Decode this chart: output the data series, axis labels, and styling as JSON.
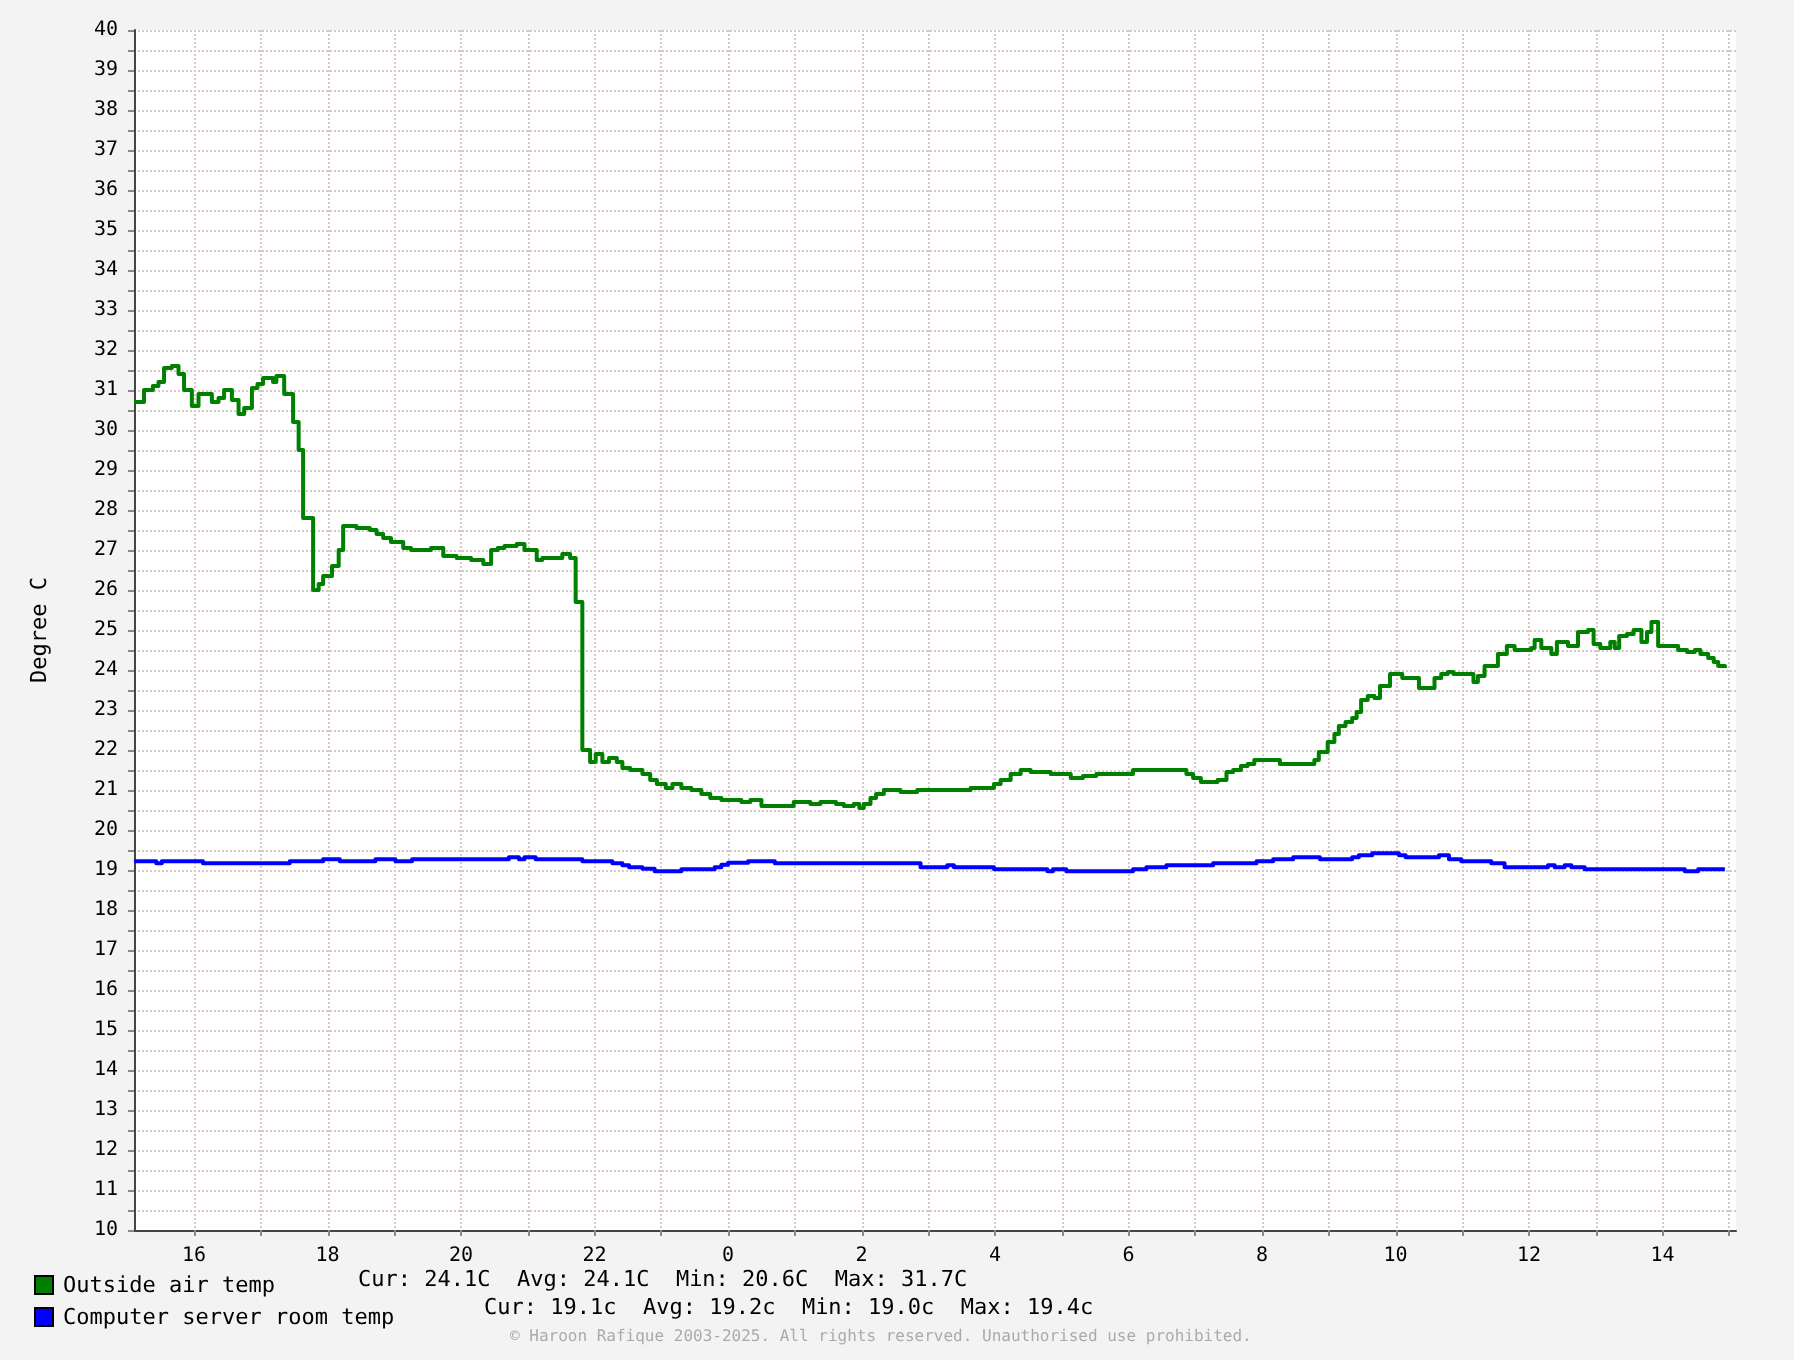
{
  "chart_data": {
    "type": "step",
    "ylabel": "Degree C",
    "xlim": [
      "--01-01T15:06",
      "--01-02T15:06"
    ],
    "ylim": [
      10,
      40
    ],
    "xticks": [
      {
        "value": "--01-01T16:00",
        "label": "16"
      },
      {
        "value": "--01-01T17:00",
        "label": null
      },
      {
        "value": "--01-01T18:00",
        "label": "18"
      },
      {
        "value": "--01-01T19:00",
        "label": null
      },
      {
        "value": "--01-01T20:00",
        "label": "20"
      },
      {
        "value": "--01-01T21:00",
        "label": null
      },
      {
        "value": "--01-01T22:00",
        "label": "22"
      },
      {
        "value": "--01-01T23:00",
        "label": null
      },
      {
        "value": "--01-02T00:00",
        "label": "0"
      },
      {
        "value": "--01-02T01:00",
        "label": null
      },
      {
        "value": "--01-02T02:00",
        "label": "2"
      },
      {
        "value": "--01-02T03:00",
        "label": null
      },
      {
        "value": "--01-02T04:00",
        "label": "4"
      },
      {
        "value": "--01-02T05:00",
        "label": null
      },
      {
        "value": "--01-02T06:00",
        "label": "6"
      },
      {
        "value": "--01-02T07:00",
        "label": null
      },
      {
        "value": "--01-02T08:00",
        "label": "8"
      },
      {
        "value": "--01-02T09:00",
        "label": null
      },
      {
        "value": "--01-02T10:00",
        "label": "10"
      },
      {
        "value": "--01-02T11:00",
        "label": null
      },
      {
        "value": "--01-02T12:00",
        "label": "12"
      },
      {
        "value": "--01-02T13:00",
        "label": null
      },
      {
        "value": "--01-02T14:00",
        "label": "14"
      },
      {
        "value": "--01-02T15:00",
        "label": null
      }
    ],
    "yticks": [
      10,
      {
        "value": 10.5,
        "label": null
      },
      11,
      {
        "value": 11.5,
        "label": null
      },
      12,
      {
        "value": 12.5,
        "label": null
      },
      13,
      {
        "value": 13.5,
        "label": null
      },
      14,
      {
        "value": 14.5,
        "label": null
      },
      15,
      {
        "value": 15.5,
        "label": null
      },
      16,
      {
        "value": 16.5,
        "label": null
      },
      17,
      {
        "value": 17.5,
        "label": null
      },
      18,
      {
        "value": 18.5,
        "label": null
      },
      19,
      {
        "value": 19.5,
        "label": null
      },
      20,
      {
        "value": 20.5,
        "label": null
      },
      21,
      {
        "value": 21.5,
        "label": null
      },
      22,
      {
        "value": 22.5,
        "label": null
      },
      23,
      {
        "value": 23.5,
        "label": null
      },
      24,
      {
        "value": 24.5,
        "label": null
      },
      25,
      {
        "value": 25.5,
        "label": null
      },
      26,
      {
        "value": 26.5,
        "label": null
      },
      27,
      {
        "value": 27.5,
        "label": null
      },
      28,
      {
        "value": 28.5,
        "label": null
      },
      29,
      {
        "value": 29.5,
        "label": null
      },
      30,
      {
        "value": 30.5,
        "label": null
      },
      31,
      {
        "value": 31.5,
        "label": null
      },
      32,
      {
        "value": 32.5,
        "label": null
      },
      33,
      {
        "value": 33.5,
        "label": null
      },
      34,
      {
        "value": 34.5,
        "label": null
      },
      35,
      {
        "value": 35.5,
        "label": null
      },
      36,
      {
        "value": 36.5,
        "label": null
      },
      37,
      {
        "value": 37.5,
        "label": null
      },
      38,
      {
        "value": 38.5,
        "label": null
      },
      39,
      {
        "value": 39.5,
        "label": null
      },
      40
    ],
    "grid": true,
    "legend": "bottom",
    "marker": "none",
    "series": [
      {
        "name": "Outside air temp",
        "color": "#008000",
        "x": [
          "--01-01T15:06",
          "--01-01T15:15",
          "--01-01T15:23",
          "--01-01T15:28",
          "--01-01T15:33",
          "--01-01T15:40",
          "--01-01T15:46",
          "--01-01T15:51",
          "--01-01T15:58",
          "--01-01T16:04",
          "--01-01T16:16",
          "--01-01T16:22",
          "--01-01T16:27",
          "--01-01T16:34",
          "--01-01T16:40",
          "--01-01T16:45",
          "--01-01T16:52",
          "--01-01T16:57",
          "--01-01T17:02",
          "--01-01T17:11",
          "--01-01T17:14",
          "--01-01T17:21",
          "--01-01T17:29",
          "--01-01T17:34",
          "--01-01T17:38",
          "--01-01T17:47",
          "--01-01T17:52",
          "--01-01T17:56",
          "--01-01T18:04",
          "--01-01T18:10",
          "--01-01T18:14",
          "--01-01T18:26",
          "--01-01T18:38",
          "--01-01T18:44",
          "--01-01T18:50",
          "--01-01T18:57",
          "--01-01T19:08",
          "--01-01T19:15",
          "--01-01T19:33",
          "--01-01T19:44",
          "--01-01T19:56",
          "--01-01T20:09",
          "--01-01T20:20",
          "--01-01T20:27",
          "--01-01T20:33",
          "--01-01T20:39",
          "--01-01T20:50",
          "--01-01T20:57",
          "--01-01T21:08",
          "--01-01T21:13",
          "--01-01T21:31",
          "--01-01T21:38",
          "--01-01T21:43",
          "--01-01T21:49",
          "--01-01T21:56",
          "--01-01T22:01",
          "--01-01T22:07",
          "--01-01T22:13",
          "--01-01T22:20",
          "--01-01T22:25",
          "--01-01T22:32",
          "--01-01T22:43",
          "--01-01T22:50",
          "--01-01T22:56",
          "--01-01T23:04",
          "--01-01T23:10",
          "--01-01T23:18",
          "--01-01T23:27",
          "--01-01T23:36",
          "--01-01T23:44",
          "--01-01T23:54",
          "--01-02T00:12",
          "--01-02T00:20",
          "--01-02T00:30",
          "--01-02T00:59",
          "--01-02T01:14",
          "--01-02T01:23",
          "--01-02T01:37",
          "--01-02T01:44",
          "--01-02T01:53",
          "--01-02T01:58",
          "--01-02T02:02",
          "--01-02T02:08",
          "--01-02T02:13",
          "--01-02T02:20",
          "--01-02T02:35",
          "--01-02T02:50",
          "--01-02T03:38",
          "--01-02T03:59",
          "--01-02T04:05",
          "--01-02T04:14",
          "--01-02T04:23",
          "--01-02T04:32",
          "--01-02T04:50",
          "--01-02T05:08",
          "--01-02T05:19",
          "--01-02T05:31",
          "--01-02T06:04",
          "--01-02T06:40",
          "--01-02T06:52",
          "--01-02T06:58",
          "--01-02T07:05",
          "--01-02T07:20",
          "--01-02T07:28",
          "--01-02T07:34",
          "--01-02T07:41",
          "--01-02T07:47",
          "--01-02T07:53",
          "--01-02T08:16",
          "--01-02T08:47",
          "--01-02T08:51",
          "--01-02T08:59",
          "--01-02T09:05",
          "--01-02T09:09",
          "--01-02T09:15",
          "--01-02T09:21",
          "--01-02T09:25",
          "--01-02T09:29",
          "--01-02T09:35",
          "--01-02T09:41",
          "--01-02T09:46",
          "--01-02T09:55",
          "--01-02T10:06",
          "--01-02T10:21",
          "--01-02T10:35",
          "--01-02T10:41",
          "--01-02T10:47",
          "--01-02T10:52",
          "--01-02T10:58",
          "--01-02T11:10",
          "--01-02T11:14",
          "--01-02T11:20",
          "--01-02T11:32",
          "--01-02T11:40",
          "--01-02T11:47",
          "--01-02T12:02",
          "--01-02T12:05",
          "--01-02T12:11",
          "--01-02T12:20",
          "--01-02T12:25",
          "--01-02T12:35",
          "--01-02T12:44",
          "--01-02T12:53",
          "--01-02T12:58",
          "--01-02T13:04",
          "--01-02T13:13",
          "--01-02T13:17",
          "--01-02T13:21",
          "--01-02T13:28",
          "--01-02T13:34",
          "--01-02T13:41",
          "--01-02T13:46",
          "--01-02T13:50",
          "--01-02T13:56",
          "--01-02T14:05",
          "--01-02T14:14",
          "--01-02T14:22",
          "--01-02T14:29",
          "--01-02T14:34",
          "--01-02T14:41",
          "--01-02T14:46",
          "--01-02T14:50",
          "--01-02T14:56"
        ],
        "values": [
          30.7,
          31.0,
          31.1,
          31.2,
          31.55,
          31.6,
          31.4,
          31.0,
          30.6,
          30.9,
          30.7,
          30.8,
          31.0,
          30.75,
          30.4,
          30.55,
          31.05,
          31.15,
          31.3,
          31.2,
          31.35,
          30.9,
          30.2,
          29.5,
          27.8,
          26.0,
          26.15,
          26.35,
          26.6,
          27.0,
          27.6,
          27.55,
          27.5,
          27.4,
          27.3,
          27.2,
          27.05,
          27.0,
          27.05,
          26.85,
          26.8,
          26.75,
          26.65,
          27.0,
          27.05,
          27.1,
          27.15,
          27.0,
          26.75,
          26.8,
          26.9,
          26.8,
          25.7,
          22.0,
          21.7,
          21.9,
          21.7,
          21.8,
          21.7,
          21.55,
          21.5,
          21.4,
          21.25,
          21.15,
          21.05,
          21.15,
          21.05,
          21.0,
          20.9,
          20.8,
          20.75,
          20.7,
          20.75,
          20.6,
          20.7,
          20.65,
          20.7,
          20.65,
          20.6,
          20.65,
          20.55,
          20.65,
          20.8,
          20.9,
          21.0,
          20.95,
          21.0,
          21.05,
          21.15,
          21.25,
          21.4,
          21.5,
          21.45,
          21.4,
          21.3,
          21.35,
          21.4,
          21.5,
          21.5,
          21.4,
          21.3,
          21.2,
          21.25,
          21.45,
          21.5,
          21.6,
          21.65,
          21.75,
          21.65,
          21.75,
          21.95,
          22.2,
          22.4,
          22.6,
          22.7,
          22.8,
          22.95,
          23.25,
          23.35,
          23.3,
          23.6,
          23.9,
          23.8,
          23.55,
          23.8,
          23.9,
          23.95,
          23.9,
          23.9,
          23.7,
          23.85,
          24.1,
          24.4,
          24.6,
          24.5,
          24.55,
          24.75,
          24.55,
          24.4,
          24.7,
          24.6,
          24.95,
          25.0,
          24.65,
          24.55,
          24.7,
          24.55,
          24.85,
          24.9,
          25.0,
          24.7,
          24.95,
          25.2,
          24.6,
          24.6,
          24.5,
          24.45,
          24.5,
          24.4,
          24.3,
          24.2,
          24.1,
          24.05
        ]
      },
      {
        "name": "Computer server room temp",
        "color": "#0000ff",
        "x": [
          "--01-01T15:06",
          "--01-01T15:26",
          "--01-01T15:31",
          "--01-01T16:08",
          "--01-01T17:26",
          "--01-01T17:56",
          "--01-01T18:11",
          "--01-01T18:43",
          "--01-01T19:01",
          "--01-01T19:16",
          "--01-01T20:43",
          "--01-01T20:52",
          "--01-01T20:57",
          "--01-01T21:07",
          "--01-01T21:49",
          "--01-01T22:16",
          "--01-01T22:25",
          "--01-01T22:31",
          "--01-01T22:43",
          "--01-01T22:54",
          "--01-01T23:18",
          "--01-01T23:48",
          "--01-01T23:54",
          "--01-02T00:00",
          "--01-02T00:18",
          "--01-02T00:42",
          "--01-02T02:53",
          "--01-02T03:17",
          "--01-02T03:23",
          "--01-02T03:59",
          "--01-02T04:47",
          "--01-02T04:52",
          "--01-02T05:04",
          "--01-02T06:04",
          "--01-02T06:16",
          "--01-02T06:34",
          "--01-02T07:16",
          "--01-02T07:55",
          "--01-02T08:10",
          "--01-02T08:28",
          "--01-02T08:52",
          "--01-02T09:21",
          "--01-02T09:27",
          "--01-02T09:39",
          "--01-02T10:03",
          "--01-02T10:09",
          "--01-02T10:39",
          "--01-02T10:48",
          "--01-02T10:59",
          "--01-02T11:26",
          "--01-02T11:38",
          "--01-02T12:17",
          "--01-02T12:23",
          "--01-02T12:32",
          "--01-02T12:38",
          "--01-02T12:50",
          "--01-02T14:20",
          "--01-02T14:32",
          "--01-02T14:56"
        ],
        "values": [
          19.22,
          19.17,
          19.22,
          19.17,
          19.22,
          19.27,
          19.22,
          19.27,
          19.22,
          19.27,
          19.32,
          19.27,
          19.32,
          19.27,
          19.22,
          19.17,
          19.12,
          19.07,
          19.03,
          18.97,
          19.02,
          19.07,
          19.13,
          19.18,
          19.22,
          19.17,
          19.07,
          19.12,
          19.07,
          19.02,
          18.97,
          19.02,
          18.97,
          19.02,
          19.07,
          19.12,
          19.17,
          19.22,
          19.27,
          19.32,
          19.27,
          19.32,
          19.37,
          19.42,
          19.37,
          19.32,
          19.37,
          19.27,
          19.22,
          19.17,
          19.07,
          19.12,
          19.07,
          19.12,
          19.07,
          19.02,
          18.97,
          19.02,
          19.02
        ]
      }
    ],
    "annotations": [
      "Cur: 24.1C  Avg: 24.1C  Min: 20.6C  Max: 31.7C",
      "Cur: 19.1c  Avg: 19.2c  Min: 19.0c  Max: 19.4c",
      "© Haroon Rafique 2003-2025. All rights reserved. Unauthorised use prohibited."
    ]
  }
}
